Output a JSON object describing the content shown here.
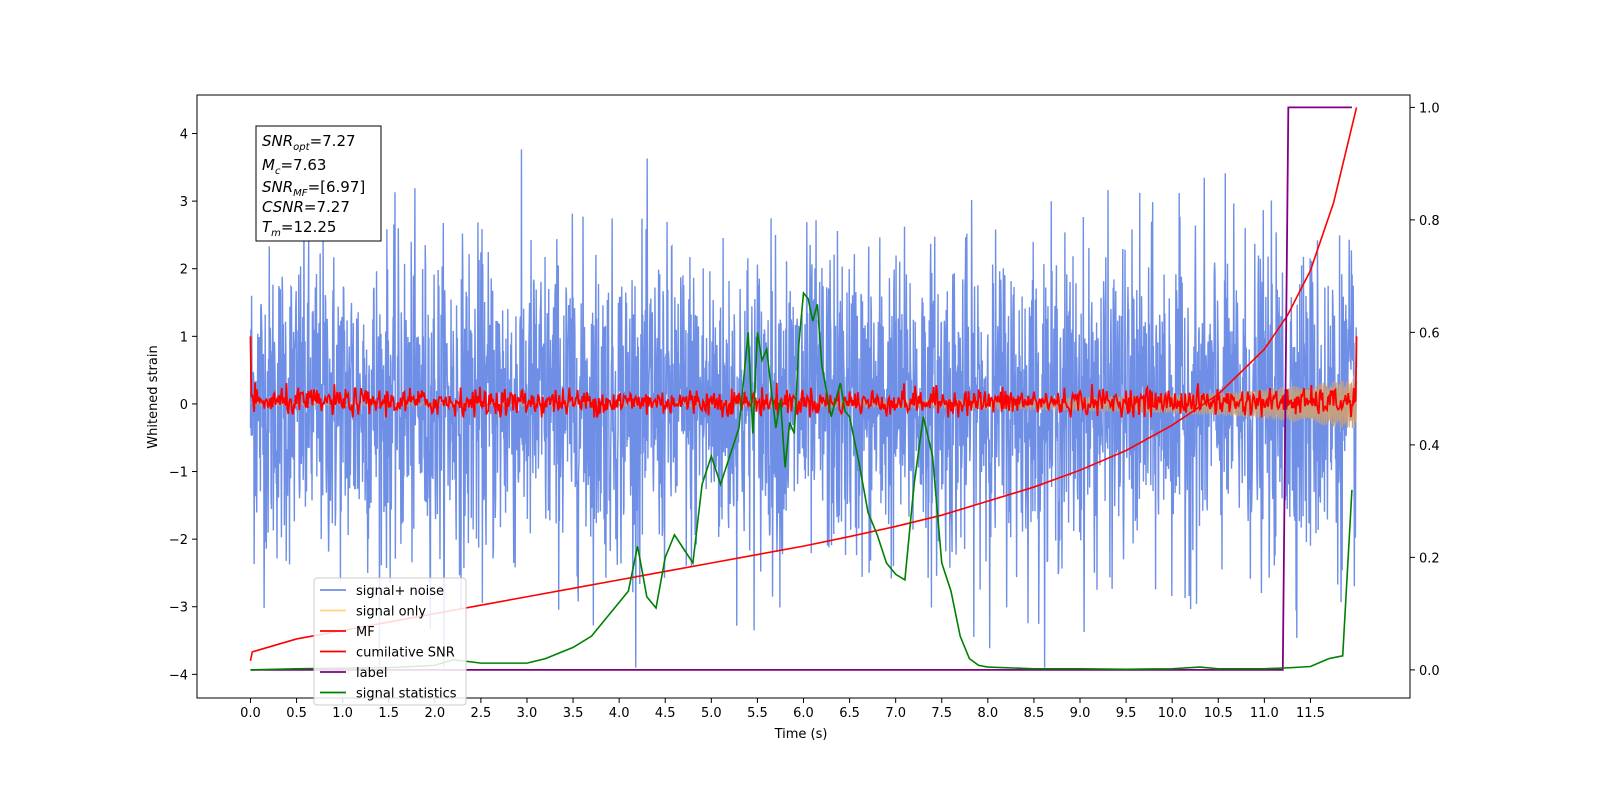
{
  "chart_data": {
    "type": "line",
    "xlabel": "Time (s)",
    "ylabel": "Whitened strain",
    "xlim": [
      -0.58,
      12.58
    ],
    "ylim_left": [
      -4.35,
      4.57
    ],
    "ylim_right": [
      -0.05,
      1.022
    ],
    "x_ticks": [
      0.0,
      0.5,
      1.0,
      1.5,
      2.0,
      2.5,
      3.0,
      3.5,
      4.0,
      4.5,
      5.0,
      5.5,
      6.0,
      6.5,
      7.0,
      7.5,
      8.0,
      8.5,
      9.0,
      9.5,
      10.0,
      10.5,
      11.0,
      11.5
    ],
    "x_tick_labels": [
      "0.0",
      "0.5",
      "1.0",
      "1.5",
      "2.0",
      "2.5",
      "3.0",
      "3.5",
      "4.0",
      "4.5",
      "5.0",
      "5.5",
      "6.0",
      "6.5",
      "7.0",
      "7.5",
      "8.0",
      "8.5",
      "9.0",
      "9.5",
      "10.0",
      "10.5",
      "11.0",
      "11.5"
    ],
    "y_ticks_left": [
      4,
      3,
      2,
      1,
      0,
      -1,
      -2,
      -3,
      -4
    ],
    "y_tick_labels_left": [
      "4",
      "3",
      "2",
      "1",
      "0",
      "−1",
      "−2",
      "−3",
      "−4"
    ],
    "y_ticks_right": [
      1.0,
      0.8,
      0.6,
      0.4,
      0.2,
      0.0
    ],
    "y_tick_labels_right": [
      "1.0",
      "0.8",
      "0.6",
      "0.4",
      "0.2",
      "0.0"
    ],
    "grid": false,
    "legend_placement": "lower-left",
    "legend": [
      {
        "label": "signal+ noise",
        "color": "#6f8fe6"
      },
      {
        "label": "signal only",
        "color": "#ffd27f"
      },
      {
        "label": "MF",
        "color": "#ff0000"
      },
      {
        "label": "cumilative SNR",
        "color": "#ff0000"
      },
      {
        "label": "label",
        "color": "#800080"
      },
      {
        "label": "signal statistics",
        "color": "#008000"
      }
    ],
    "stats_box": [
      {
        "main": "SNR",
        "sub": "opt",
        "rest": "=7.27"
      },
      {
        "main": "M",
        "sub": "c",
        "rest": "=7.63"
      },
      {
        "main": "SNR",
        "sub": "MF",
        "rest": "=[6.97]"
      },
      {
        "main": "CSNR",
        "sub": "",
        "rest": "=7.27"
      },
      {
        "main": "T",
        "sub": "m",
        "rest": "=12.25"
      }
    ],
    "series": [
      {
        "name": "signal+ noise",
        "axis": "left",
        "color": "#6f8fe6",
        "description": "dense noisy strain, amplitude roughly within -3.9 to 4.2",
        "x_range": [
          0.0,
          12.0
        ],
        "y_extent": [
          -3.9,
          4.2
        ]
      },
      {
        "name": "signal only",
        "axis": "left",
        "color": "#ffd27f",
        "description": "chirp waveform, envelope growing to about 0.35 near 12.0 s",
        "x_range": [
          0.0,
          12.0
        ],
        "envelope": {
          "x": [
            0,
            6,
            8,
            9,
            10,
            10.5,
            11,
            11.5,
            12.0
          ],
          "y": [
            0.02,
            0.04,
            0.07,
            0.1,
            0.14,
            0.17,
            0.22,
            0.29,
            0.38
          ]
        }
      },
      {
        "name": "MF",
        "axis": "left",
        "color": "#ff0000",
        "description": "matched-filter output oscillating around 0 (about -0.2 to 0.4), 1.0 at both ends",
        "x_range": [
          0.0,
          12.0
        ],
        "endpoints": [
          1.0,
          1.0
        ]
      },
      {
        "name": "cumilative SNR",
        "axis": "right",
        "color": "#ff0000",
        "x": [
          0.0,
          0.02,
          0.5,
          1.0,
          1.5,
          2.0,
          2.5,
          3.0,
          3.5,
          4.0,
          4.5,
          5.0,
          5.5,
          6.0,
          6.5,
          7.0,
          7.5,
          8.0,
          8.5,
          9.0,
          9.5,
          10.0,
          10.5,
          11.0,
          11.25,
          11.5,
          11.75,
          12.0
        ],
        "y": [
          0.016,
          0.032,
          0.055,
          0.07,
          0.085,
          0.1,
          0.115,
          0.13,
          0.145,
          0.16,
          0.175,
          0.19,
          0.205,
          0.22,
          0.237,
          0.255,
          0.275,
          0.3,
          0.325,
          0.355,
          0.39,
          0.435,
          0.49,
          0.57,
          0.63,
          0.71,
          0.83,
          1.0
        ]
      },
      {
        "name": "label",
        "axis": "right",
        "color": "#800080",
        "x": [
          0.0,
          11.2,
          11.26,
          11.95
        ],
        "y": [
          0.0,
          0.0,
          1.0,
          1.0
        ]
      },
      {
        "name": "signal statistics",
        "axis": "right",
        "color": "#008000",
        "x": [
          0.0,
          0.5,
          1.0,
          1.5,
          2.0,
          2.2,
          2.5,
          3.0,
          3.2,
          3.5,
          3.7,
          3.9,
          4.1,
          4.2,
          4.3,
          4.4,
          4.5,
          4.6,
          4.8,
          4.9,
          5.0,
          5.1,
          5.2,
          5.3,
          5.4,
          5.45,
          5.5,
          5.55,
          5.6,
          5.7,
          5.75,
          5.8,
          5.85,
          5.9,
          5.95,
          6.0,
          6.05,
          6.1,
          6.15,
          6.2,
          6.3,
          6.4,
          6.45,
          6.5,
          6.6,
          6.7,
          6.8,
          6.9,
          7.0,
          7.1,
          7.2,
          7.3,
          7.4,
          7.5,
          7.6,
          7.7,
          7.8,
          7.9,
          8.0,
          8.5,
          9.0,
          9.5,
          10.0,
          10.3,
          10.5,
          11.0,
          11.3,
          11.5,
          11.7,
          11.85,
          11.95
        ],
        "y": [
          0.0,
          0.002,
          0.003,
          0.004,
          0.008,
          0.018,
          0.012,
          0.012,
          0.02,
          0.04,
          0.06,
          0.1,
          0.14,
          0.22,
          0.13,
          0.11,
          0.2,
          0.24,
          0.19,
          0.33,
          0.38,
          0.33,
          0.38,
          0.43,
          0.6,
          0.42,
          0.6,
          0.55,
          0.57,
          0.43,
          0.48,
          0.36,
          0.44,
          0.42,
          0.58,
          0.67,
          0.66,
          0.62,
          0.65,
          0.54,
          0.45,
          0.51,
          0.46,
          0.45,
          0.37,
          0.28,
          0.24,
          0.19,
          0.17,
          0.16,
          0.33,
          0.45,
          0.38,
          0.19,
          0.14,
          0.06,
          0.02,
          0.008,
          0.005,
          0.002,
          0.002,
          0.001,
          0.002,
          0.005,
          0.002,
          0.002,
          0.004,
          0.006,
          0.02,
          0.025,
          0.32
        ]
      }
    ]
  }
}
